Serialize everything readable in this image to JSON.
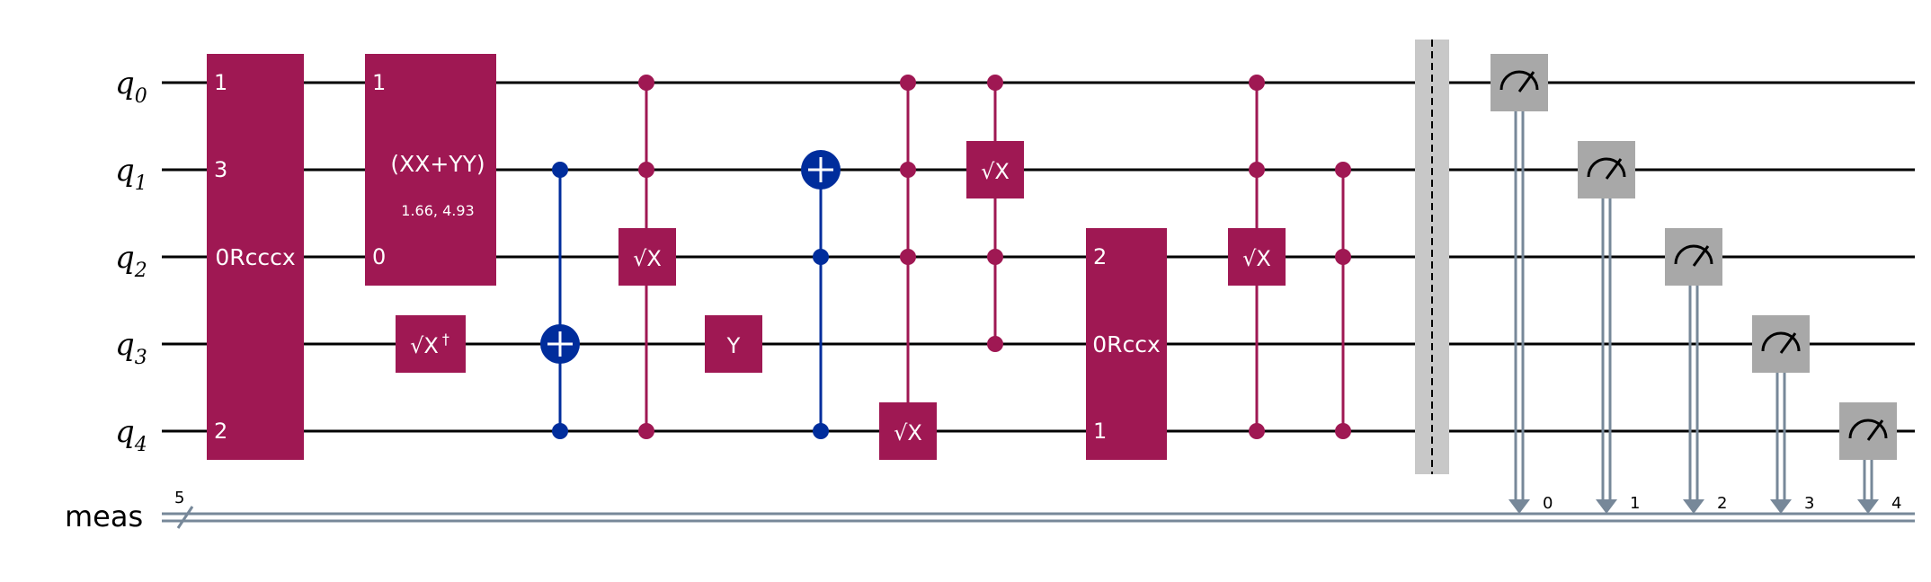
{
  "colors": {
    "gate": "#9f1853",
    "cnot": "#002d9c",
    "measure": "#a8a8a8",
    "classical": "#778899",
    "barrier": "#c8c8c8",
    "wire": "#000000",
    "gate_text": "#ffffff"
  },
  "qubits": [
    {
      "label": "q",
      "sub": "0"
    },
    {
      "label": "q",
      "sub": "1"
    },
    {
      "label": "q",
      "sub": "2"
    },
    {
      "label": "q",
      "sub": "3"
    },
    {
      "label": "q",
      "sub": "4"
    }
  ],
  "classical_register": {
    "label": "meas",
    "size": "5"
  },
  "gates": {
    "rcccx": {
      "name": "0Rcccx",
      "pins": [
        "1",
        "3",
        "2"
      ]
    },
    "xxpyy": {
      "name": "(XX+YY)",
      "params": "1.66, 4.93",
      "pins": [
        "1",
        "0"
      ]
    },
    "sxdg": {
      "name": "√X",
      "dagger": "†"
    },
    "sx_a": {
      "name": "√X"
    },
    "y": {
      "name": "Y"
    },
    "sx_b": {
      "name": "√X"
    },
    "sx_c": {
      "name": "√X"
    },
    "rccx": {
      "name": "0Rccx",
      "pins": [
        "2",
        "1"
      ]
    },
    "sx_d": {
      "name": "√X"
    }
  },
  "measure_bits": [
    "0",
    "1",
    "2",
    "3",
    "4"
  ],
  "icons": {
    "measure": "meter-arc-arrow-icon",
    "cnot_target": "circle-plus-icon",
    "control": "filled-dot-icon",
    "bundle": "slash-icon"
  }
}
